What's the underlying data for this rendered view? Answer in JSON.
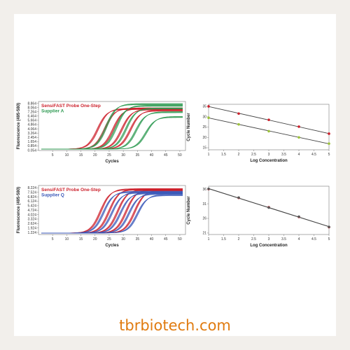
{
  "footer": {
    "text": "tbrbiotech.com",
    "color": "#e07b10"
  },
  "chart_data": [
    {
      "type": "line",
      "xlabel": "Cycles",
      "ylabel": "Fluorescence (495-580)",
      "x_ticks": [
        "5",
        "10",
        "15",
        "20",
        "25",
        "30",
        "35",
        "40",
        "45",
        "50"
      ],
      "y_ticks": [
        "0.054",
        "0.854",
        "1.654",
        "2.454",
        "3.264",
        "4.064",
        "4.864",
        "5.664",
        "6.464",
        "7.264",
        "8.064",
        "8.864"
      ],
      "xlim": [
        0,
        52
      ],
      "ylim": [
        0,
        9.2
      ],
      "series": [
        {
          "name": "SensiFAST Probe One-Step",
          "color": "#cc1f2a",
          "ct": [
            21,
            23.5,
            26.5,
            29.5,
            32.5
          ],
          "plateau": [
            7.8,
            7.9,
            7.9,
            7.7,
            7.5
          ]
        },
        {
          "name": "Supplier A",
          "color": "#2e9a52",
          "ct": [
            24,
            27.5,
            31,
            34.5,
            38
          ],
          "plateau": [
            8.7,
            8.4,
            7.9,
            7.2,
            6.3
          ]
        }
      ]
    },
    {
      "type": "scatter",
      "xlabel": "Log Concentration",
      "ylabel": "Cycle Number",
      "x_ticks": [
        "1",
        "1.5",
        "2",
        "2.5",
        "3",
        "3.5",
        "4",
        "4.5",
        "5"
      ],
      "y_ticks": [
        "15",
        "20",
        "25",
        "30",
        "35"
      ],
      "xlim": [
        1,
        5
      ],
      "ylim": [
        14,
        36
      ],
      "series": [
        {
          "color": "#cc1f2a",
          "x": [
            1,
            2,
            3,
            4,
            5
          ],
          "y": [
            35,
            31.5,
            28.5,
            25.2,
            21.8
          ]
        },
        {
          "color": "#9cc23a",
          "x": [
            1,
            2,
            3,
            4,
            5
          ],
          "y": [
            29.5,
            26.3,
            23,
            20,
            17
          ]
        }
      ]
    },
    {
      "type": "line",
      "xlabel": "Cycles",
      "ylabel": "Fluorescence (495-580)",
      "x_ticks": [
        "5",
        "10",
        "15",
        "20",
        "25",
        "30",
        "35",
        "40",
        "45",
        "50"
      ],
      "y_ticks": [
        "1.224",
        "1.924",
        "2.624",
        "3.324",
        "4.024",
        "4.724",
        "5.424",
        "6.124",
        "6.824",
        "7.524",
        "8.224"
      ],
      "xlim": [
        0,
        52
      ],
      "ylim": [
        0.9,
        8.6
      ],
      "series": [
        {
          "name": "SensiFAST Probe One-Step",
          "color": "#cc1f2a",
          "ct": [
            22,
            25,
            28,
            31,
            34
          ],
          "plateau": [
            8.0,
            8.0,
            7.9,
            7.9,
            7.8
          ]
        },
        {
          "name": "Supplier Q",
          "color": "#3a58b8",
          "ct": [
            23,
            26,
            29,
            32,
            35
          ],
          "plateau": [
            7.6,
            7.5,
            7.4,
            7.3,
            7.1
          ]
        }
      ]
    },
    {
      "type": "scatter",
      "xlabel": "Log Concentration",
      "ylabel": "Cycle Number",
      "x_ticks": [
        "1",
        "1.5",
        "2",
        "2.5",
        "3",
        "3.5",
        "4",
        "4.5",
        "5"
      ],
      "y_ticks": [
        "21",
        "26",
        "31",
        "36"
      ],
      "xlim": [
        1,
        5
      ],
      "ylim": [
        20.5,
        37
      ],
      "series": [
        {
          "color": "#cc1f2a",
          "x": [
            1,
            2,
            3,
            4,
            5
          ],
          "y": [
            36,
            33,
            29.8,
            26.5,
            23
          ]
        },
        {
          "color": "#555555",
          "x": [
            1,
            2,
            3,
            4,
            5
          ],
          "y": [
            36.1,
            33.1,
            29.7,
            26.6,
            23.1
          ]
        }
      ]
    }
  ]
}
